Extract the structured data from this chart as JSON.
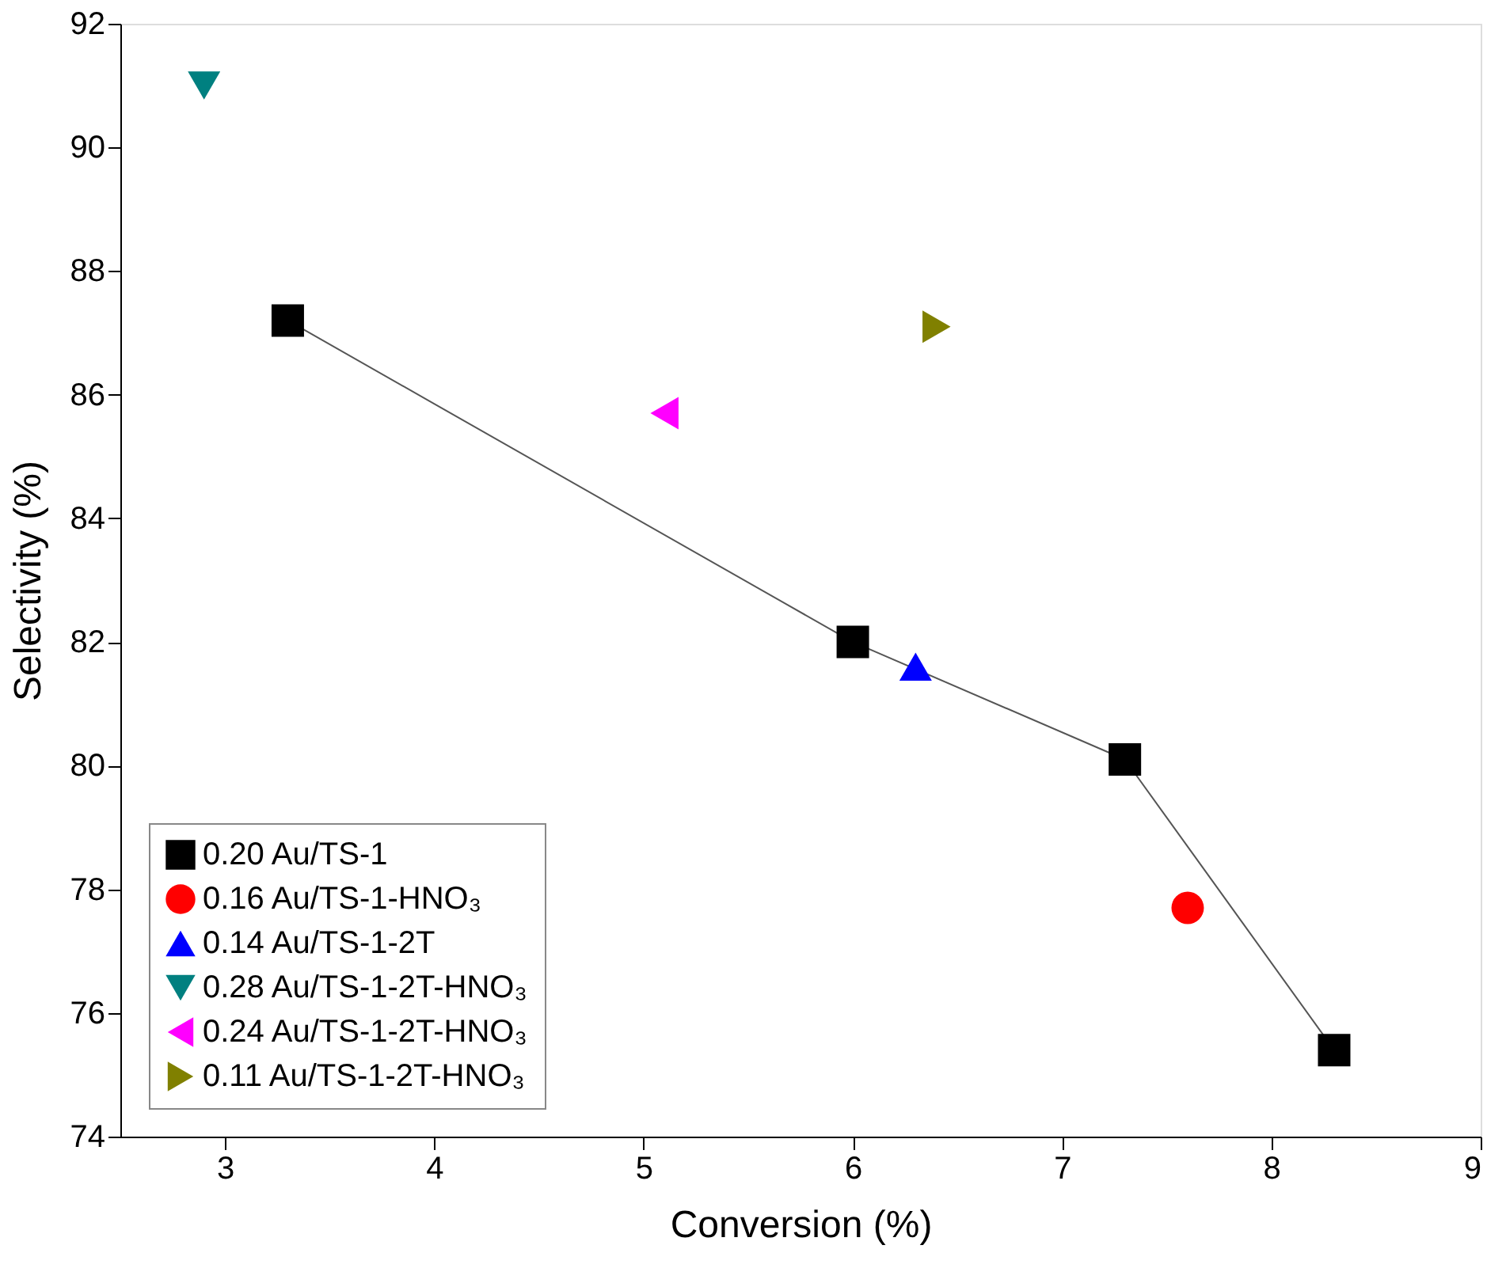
{
  "chart_data": {
    "type": "scatter",
    "xlabel": "Conversion (%)",
    "ylabel": "Selectivity (%)",
    "xlim": [
      2.5,
      9
    ],
    "ylim": [
      74,
      92
    ],
    "xticks": [
      3,
      4,
      5,
      6,
      7,
      8,
      9
    ],
    "yticks": [
      74,
      76,
      78,
      80,
      82,
      84,
      86,
      88,
      90,
      92
    ],
    "grid": false,
    "legend": "bottom left",
    "series": [
      {
        "name": "0.20 Au/TS-1",
        "type": "line",
        "marker": "square",
        "color": "#000000",
        "x": [
          3.3,
          6.0,
          7.3,
          8.3
        ],
        "values": [
          87.2,
          82.0,
          80.1,
          75.4
        ]
      },
      {
        "name": "0.16 Au/TS-1-HNO₃",
        "marker": "circle",
        "color": "#ff0000",
        "x": [
          7.6
        ],
        "values": [
          77.7
        ]
      },
      {
        "name": "0.14 Au/TS-1-2T",
        "marker": "triangle-up",
        "color": "#0000ff",
        "x": [
          6.3
        ],
        "values": [
          81.6
        ]
      },
      {
        "name": "0.28 Au/TS-1-2T-HNO₃",
        "marker": "triangle-down",
        "color": "#008080",
        "x": [
          2.9
        ],
        "values": [
          91.0
        ]
      },
      {
        "name": "0.24 Au/TS-1-2T-HNO₃",
        "marker": "triangle-left",
        "color": "#ff00ff",
        "x": [
          5.1
        ],
        "values": [
          85.7
        ]
      },
      {
        "name": "0.11 Au/TS-1-2T-HNO₃",
        "marker": "triangle-right",
        "color": "#808000",
        "x": [
          6.4
        ],
        "values": [
          87.1
        ]
      }
    ]
  }
}
